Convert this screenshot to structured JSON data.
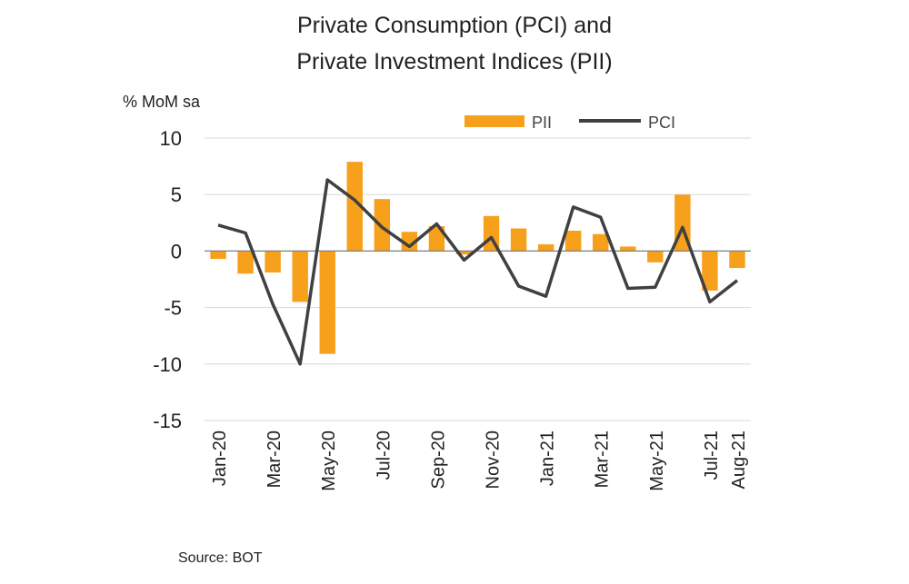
{
  "chart_data": {
    "type": "bar",
    "title_line1": "Private Consumption (PCI) and",
    "title_line2": "Private Investment Indices (PII)",
    "ylabel": "% MoM sa",
    "source": "Source:  BOT",
    "ylim": [
      -15,
      10
    ],
    "yticks": [
      10,
      5,
      0,
      -5,
      -10,
      -15
    ],
    "grid": true,
    "legend_position": "top-right",
    "categories": [
      "Jan-20",
      "Feb-20",
      "Mar-20",
      "Apr-20",
      "May-20",
      "Jun-20",
      "Jul-20",
      "Aug-20",
      "Sep-20",
      "Oct-20",
      "Nov-20",
      "Dec-20",
      "Jan-21",
      "Feb-21",
      "Mar-21",
      "Apr-21",
      "May-21",
      "Jun-21",
      "Jul-21",
      "Aug-21"
    ],
    "xtick_labels": [
      "Jan-20",
      "",
      "Mar-20",
      "",
      "May-20",
      "",
      "Jul-20",
      "",
      "Sep-20",
      "",
      "Nov-20",
      "",
      "Jan-21",
      "",
      "Mar-21",
      "",
      "May-21",
      "",
      "Jul-21",
      "Aug-21"
    ],
    "series": [
      {
        "name": "PII",
        "type": "bar",
        "color": "#F7A01C",
        "values": [
          -0.7,
          -2.0,
          -1.9,
          -4.5,
          -9.1,
          7.9,
          4.6,
          1.7,
          2.2,
          -0.3,
          3.1,
          2.0,
          0.6,
          1.8,
          1.5,
          0.4,
          -1.0,
          5.0,
          -3.5,
          -1.5
        ]
      },
      {
        "name": "PCI",
        "type": "line",
        "color": "#404040",
        "values": [
          2.3,
          1.6,
          -4.7,
          -10.0,
          6.3,
          4.5,
          2.1,
          0.4,
          2.4,
          -0.8,
          1.2,
          -3.1,
          -4.0,
          3.9,
          3.0,
          -3.3,
          -3.2,
          2.1,
          -4.5,
          -2.6
        ]
      }
    ]
  }
}
